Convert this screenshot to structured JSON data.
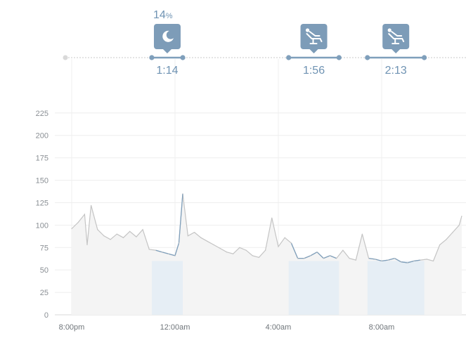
{
  "chart_data": {
    "type": "line",
    "title": "",
    "xlabel": "",
    "ylabel": "",
    "ylim": [
      0,
      250
    ],
    "yticks": [
      "0",
      "25",
      "50",
      "75",
      "100",
      "125",
      "150",
      "175",
      "200",
      "225"
    ],
    "xticks": [
      {
        "label": "8:00pm",
        "t": 0
      },
      {
        "label": "12:00am",
        "t": 4
      },
      {
        "label": "4:00am",
        "t": 8
      },
      {
        "label": "8:00am",
        "t": 12
      }
    ],
    "x_unit": "hours after 8:00pm",
    "xlim": [
      -0.25,
      15.1
    ],
    "grid": true,
    "series_color": "#c4c4c4",
    "highlight_color": "#7f9fbb",
    "highlight_fill": "#e6eef5",
    "baseline_fill": "#f4f4f4",
    "series": [
      {
        "x": [
          0,
          0.25,
          0.5,
          0.6,
          0.75,
          1.0,
          1.25,
          1.5,
          1.75,
          2.0,
          2.25,
          2.5,
          2.75,
          3.0,
          3.25,
          3.5,
          3.75,
          4.0,
          4.15,
          4.3,
          4.5,
          4.75,
          5.0,
          5.25,
          5.5,
          5.75,
          6.0,
          6.25,
          6.5,
          6.75,
          7.0,
          7.25,
          7.5,
          7.75,
          8.0,
          8.25,
          8.5,
          8.75,
          9.0,
          9.25,
          9.5,
          9.75,
          10.0,
          10.25,
          10.5,
          10.75,
          11.0,
          11.25,
          11.5,
          11.75,
          12.0,
          12.25,
          12.5,
          12.75,
          13.0,
          13.25,
          13.5,
          13.75,
          14.0,
          14.25,
          14.5,
          14.75,
          15.0,
          15.1
        ],
        "values": [
          96,
          103,
          112,
          78,
          122,
          95,
          88,
          84,
          90,
          86,
          93,
          87,
          95,
          73,
          72,
          70,
          68,
          66,
          80,
          135,
          88,
          92,
          86,
          82,
          78,
          74,
          70,
          68,
          75,
          72,
          66,
          64,
          72,
          108,
          76,
          86,
          80,
          63,
          63,
          66,
          70,
          63,
          66,
          63,
          72,
          63,
          61,
          90,
          63,
          62,
          60,
          61,
          63,
          59,
          58,
          60,
          61,
          62,
          60,
          78,
          84,
          92,
          100,
          110
        ]
      }
    ],
    "highlighted_ranges": [
      {
        "start": 3.1,
        "end": 4.3
      },
      {
        "start": 8.4,
        "end": 10.35
      },
      {
        "start": 11.45,
        "end": 13.65
      }
    ]
  },
  "timeline": {
    "percent_value": "14",
    "percent_symbol": "%",
    "segments": [
      {
        "icon": "moon-icon",
        "duration": "1:14",
        "start": 3.1,
        "end": 4.3
      },
      {
        "icon": "recliner-icon",
        "duration": "1:56",
        "start": 8.4,
        "end": 10.35
      },
      {
        "icon": "recliner-icon",
        "duration": "2:13",
        "start": 11.45,
        "end": 13.65
      }
    ],
    "line_color": "#7f9fbb",
    "badge_color": "#7d9cb8"
  }
}
